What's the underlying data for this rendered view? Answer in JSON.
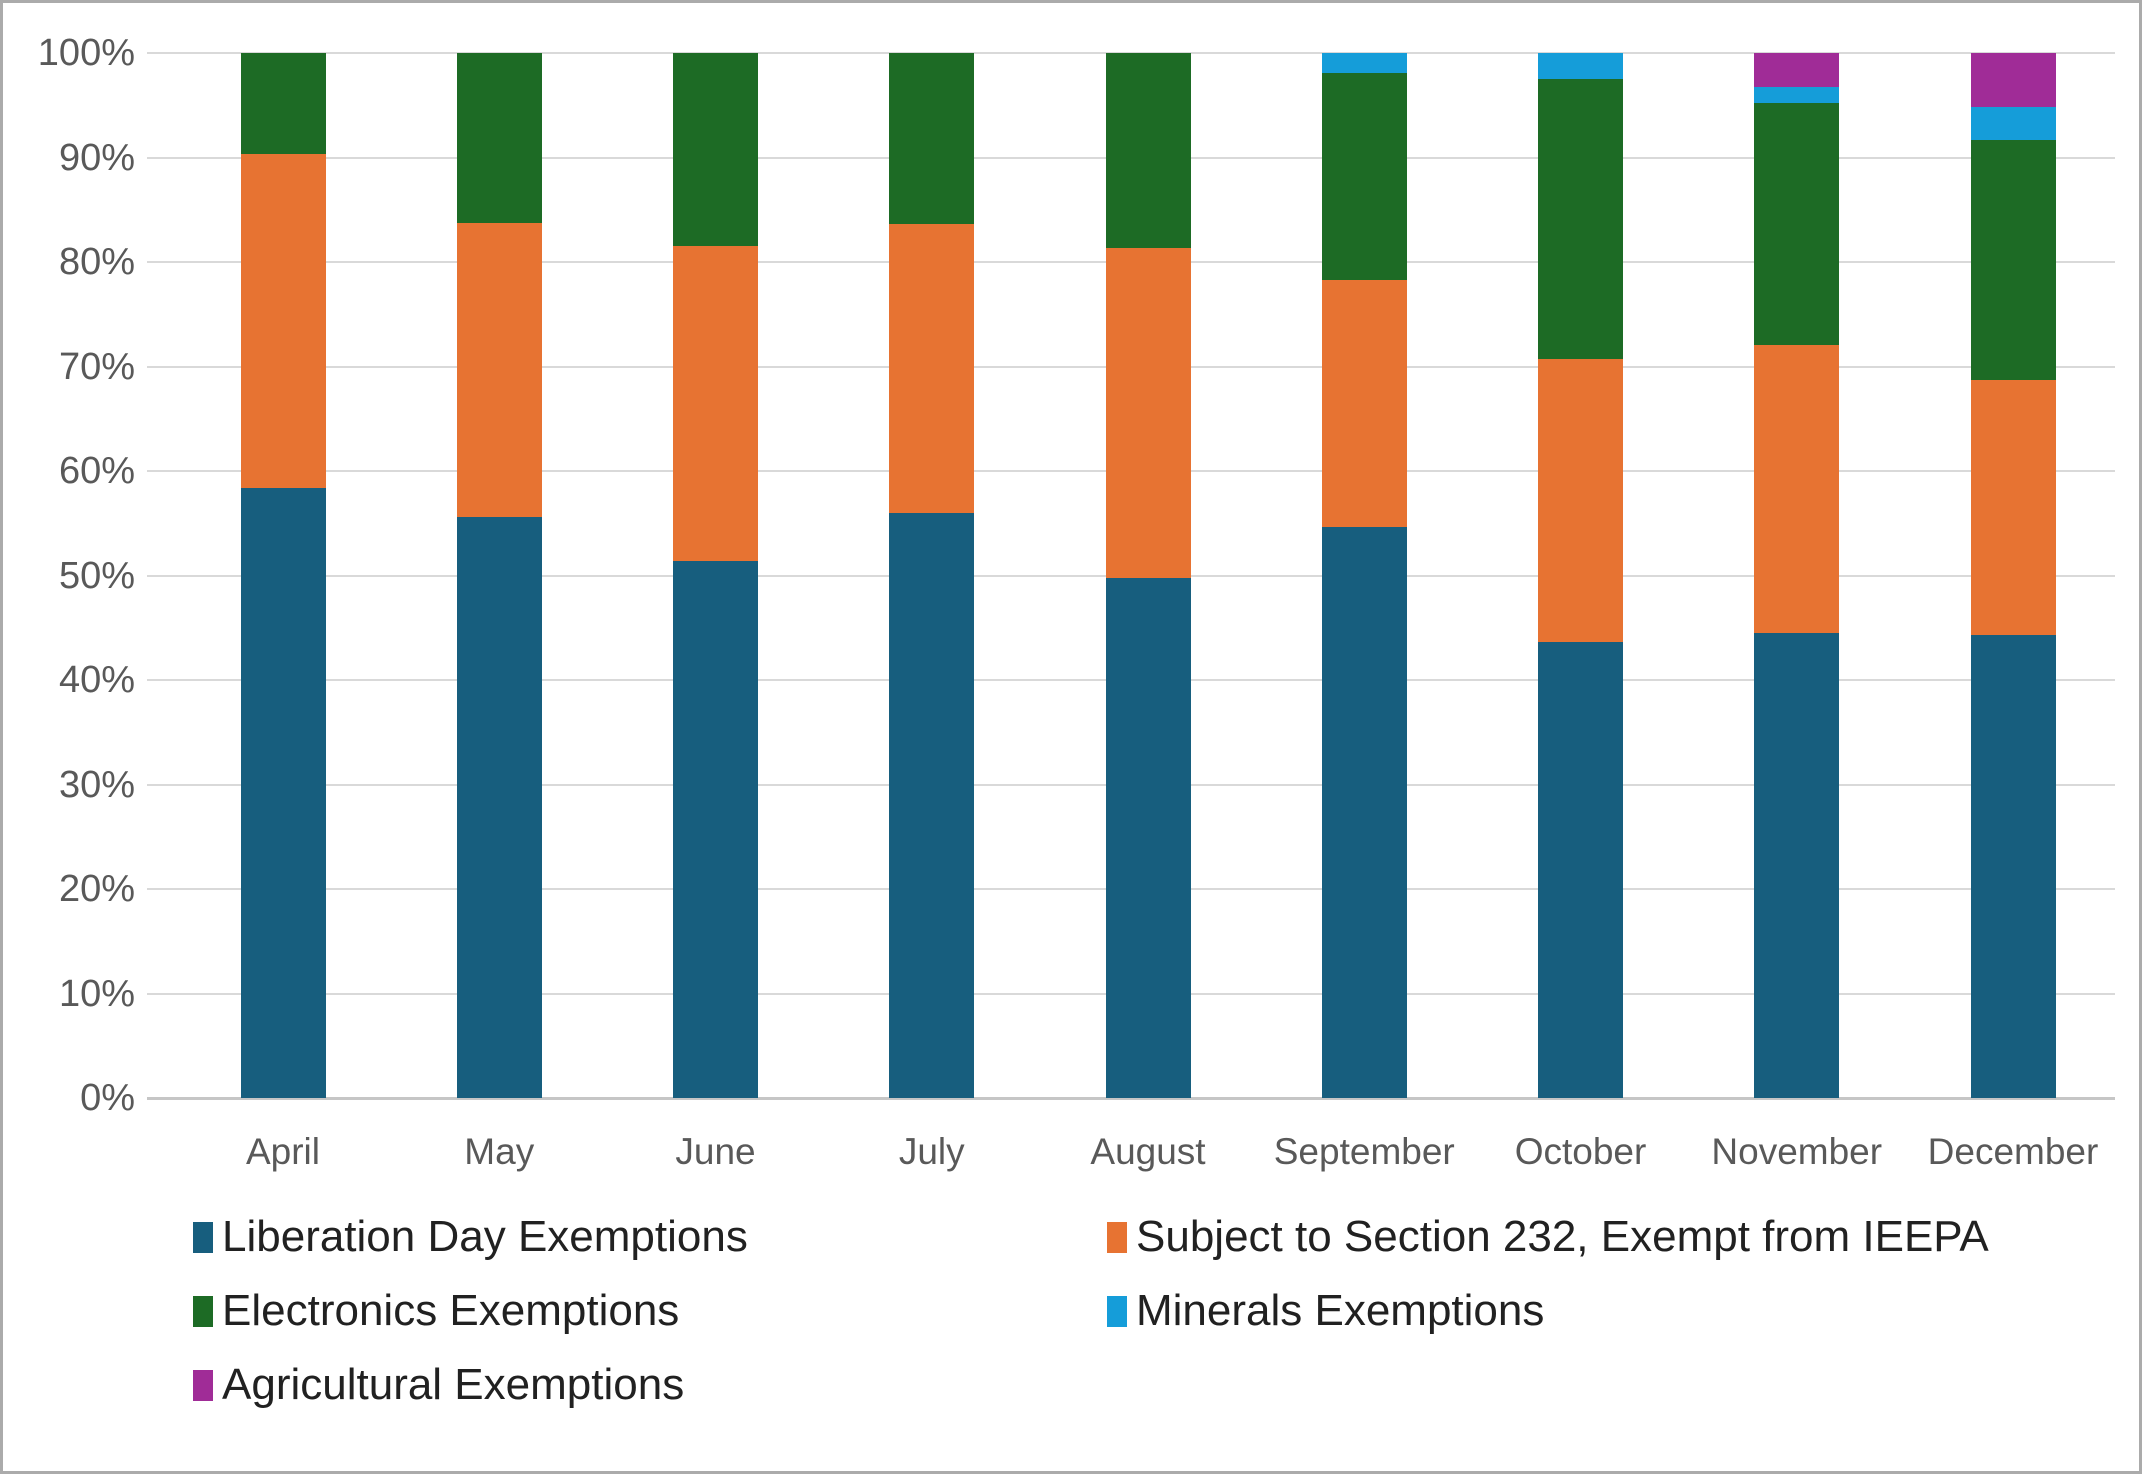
{
  "chart_data": {
    "type": "bar",
    "stacked": true,
    "orientation": "vertical",
    "title": "",
    "xlabel": "",
    "ylabel": "",
    "ylim": [
      0,
      100
    ],
    "grid": true,
    "legend_position": "bottom",
    "y_ticks": [
      "0%",
      "10%",
      "20%",
      "30%",
      "40%",
      "50%",
      "60%",
      "70%",
      "80%",
      "90%",
      "100%"
    ],
    "categories": [
      "April",
      "May",
      "June",
      "July",
      "August",
      "September",
      "October",
      "November",
      "December"
    ],
    "series": [
      {
        "name": "Liberation Day Exemptions",
        "color": "#175E7E",
        "values": [
          58.4,
          55.6,
          51.4,
          56.0,
          49.8,
          54.6,
          43.6,
          44.5,
          44.3
        ]
      },
      {
        "name": "Subject to Section 232, Exempt from IEEPA",
        "color": "#E77332",
        "values": [
          31.9,
          28.1,
          30.1,
          27.6,
          31.5,
          23.7,
          27.1,
          27.6,
          24.4
        ]
      },
      {
        "name": "Electronics Exemptions",
        "color": "#1D6B25",
        "values": [
          9.7,
          16.3,
          18.5,
          16.4,
          18.7,
          19.8,
          26.8,
          23.1,
          23.0
        ]
      },
      {
        "name": "Minerals Exemptions",
        "color": "#159DD9",
        "values": [
          0,
          0,
          0,
          0,
          0,
          1.9,
          2.5,
          1.5,
          3.1
        ]
      },
      {
        "name": "Agricultural Exemptions",
        "color": "#A02C97",
        "values": [
          0,
          0,
          0,
          0,
          0,
          0,
          0,
          3.3,
          5.2
        ]
      }
    ],
    "colors": {
      "gridline": "#D9D9D9",
      "axis_line": "#C6C6C6",
      "axis_text": "#595959",
      "legend_text": "#212121",
      "frame_border": "#ABABAB"
    }
  }
}
